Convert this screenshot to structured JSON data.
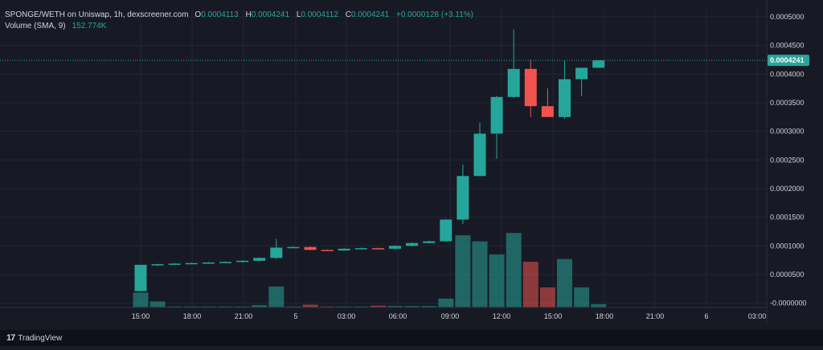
{
  "legend": {
    "title": "SPONGE/WETH on Uniswap, 1h, dexscreener.com",
    "open_label": "O",
    "open": "0.0004113",
    "high_label": "H",
    "high": "0.0004241",
    "low_label": "L",
    "low": "0.0004112",
    "close_label": "C",
    "close": "0.0004241",
    "change": "+0.0000128 (+3.11%)",
    "volume_label": "Volume (SMA, 9)",
    "volume_value": "152.774K"
  },
  "branding": {
    "logo_text": "TradingView",
    "logo_mark": "17"
  },
  "colors": {
    "up": "#26a69a",
    "down": "#ef5350",
    "background": "#171a25",
    "grid": "#232634",
    "text": "#d1d4dc"
  },
  "chart_data": {
    "type": "candlestick",
    "x_ticks": [
      "15:00",
      "18:00",
      "21:00",
      "5",
      "03:00",
      "06:00",
      "09:00",
      "12:00",
      "15:00",
      "18:00",
      "21:00",
      "6",
      "03:00"
    ],
    "y_ticks": [
      "0.0005000",
      "0.0004500",
      "0.0004000",
      "0.0003500",
      "0.0003000",
      "0.0002500",
      "0.0002000",
      "0.0001500",
      "0.0001000",
      "0.0000500",
      "-0.0000000"
    ],
    "last_price_label": "0.0004241",
    "ylim": [
      -7.5e-06,
      0.0005125
    ],
    "candles": [
      {
        "o": 2.1e-05,
        "h": 6.7e-05,
        "l": 2.1e-05,
        "c": 6.7e-05,
        "v": 0.32
      },
      {
        "o": 6.6e-05,
        "h": 6.9e-05,
        "l": 6.5e-05,
        "c": 6.8e-05,
        "v": 0.13
      },
      {
        "o": 6.8e-05,
        "h": 7e-05,
        "l": 6.7e-05,
        "c": 6.9e-05,
        "v": 0.02
      },
      {
        "o": 6.9e-05,
        "h": 7.1e-05,
        "l": 6.8e-05,
        "c": 7e-05,
        "v": 0.02
      },
      {
        "o": 7e-05,
        "h": 7.2e-05,
        "l": 6.9e-05,
        "c": 7.1e-05,
        "v": 0.02
      },
      {
        "o": 7.1e-05,
        "h": 7.3e-05,
        "l": 7e-05,
        "c": 7.2e-05,
        "v": 0.02
      },
      {
        "o": 7.2e-05,
        "h": 7.5e-05,
        "l": 7.1e-05,
        "c": 7.4e-05,
        "v": 0.02
      },
      {
        "o": 7.4e-05,
        "h": 8e-05,
        "l": 7.3e-05,
        "c": 7.9e-05,
        "v": 0.05
      },
      {
        "o": 7.9e-05,
        "h": 0.000112,
        "l": 7.7e-05,
        "c": 9.7e-05,
        "v": 0.45
      },
      {
        "o": 9.7e-05,
        "h": 9.9e-05,
        "l": 9.6e-05,
        "c": 9.8e-05,
        "v": 0.02
      },
      {
        "o": 9.8e-05,
        "h": 9.9e-05,
        "l": 9.2e-05,
        "c": 9.3e-05,
        "v": 0.06
      },
      {
        "o": 9.3e-05,
        "h": 9.4e-05,
        "l": 9.2e-05,
        "c": 9.2e-05,
        "v": 0.02
      },
      {
        "o": 9.2e-05,
        "h": 9.6e-05,
        "l": 9.1e-05,
        "c": 9.5e-05,
        "v": 0.02
      },
      {
        "o": 9.5e-05,
        "h": 9.7e-05,
        "l": 9.4e-05,
        "c": 9.6e-05,
        "v": 0.02
      },
      {
        "o": 9.6e-05,
        "h": 9.7e-05,
        "l": 9.4e-05,
        "c": 9.5e-05,
        "v": 0.04
      },
      {
        "o": 9.5e-05,
        "h": 0.000101,
        "l": 9.4e-05,
        "c": 0.0001,
        "v": 0.03
      },
      {
        "o": 0.0001,
        "h": 0.000106,
        "l": 9.9e-05,
        "c": 0.000105,
        "v": 0.03
      },
      {
        "o": 0.000105,
        "h": 0.000109,
        "l": 0.000104,
        "c": 0.000108,
        "v": 0.03
      },
      {
        "o": 0.000108,
        "h": 0.000147,
        "l": 0.000107,
        "c": 0.000146,
        "v": 0.19
      },
      {
        "o": 0.000146,
        "h": 0.000242,
        "l": 0.000138,
        "c": 0.000222,
        "v": 1.55
      },
      {
        "o": 0.000222,
        "h": 0.000315,
        "l": 0.000222,
        "c": 0.000296,
        "v": 1.42
      },
      {
        "o": 0.000296,
        "h": 0.000362,
        "l": 0.000252,
        "c": 0.00036,
        "v": 1.14
      },
      {
        "o": 0.00036,
        "h": 0.000478,
        "l": 0.000359,
        "c": 0.000409,
        "v": 1.6
      },
      {
        "o": 0.000409,
        "h": 0.000425,
        "l": 0.000325,
        "c": 0.000344,
        "v": 0.98
      },
      {
        "o": 0.000344,
        "h": 0.000375,
        "l": 0.000325,
        "c": 0.000325,
        "v": 0.43
      },
      {
        "o": 0.000325,
        "h": 0.000424,
        "l": 0.000322,
        "c": 0.000391,
        "v": 1.04
      },
      {
        "o": 0.000391,
        "h": 0.00041,
        "l": 0.000361,
        "c": 0.000411,
        "v": 0.43
      },
      {
        "o": 0.000411,
        "h": 0.000424,
        "l": 0.000411,
        "c": 0.000424,
        "v": 0.07
      }
    ]
  }
}
